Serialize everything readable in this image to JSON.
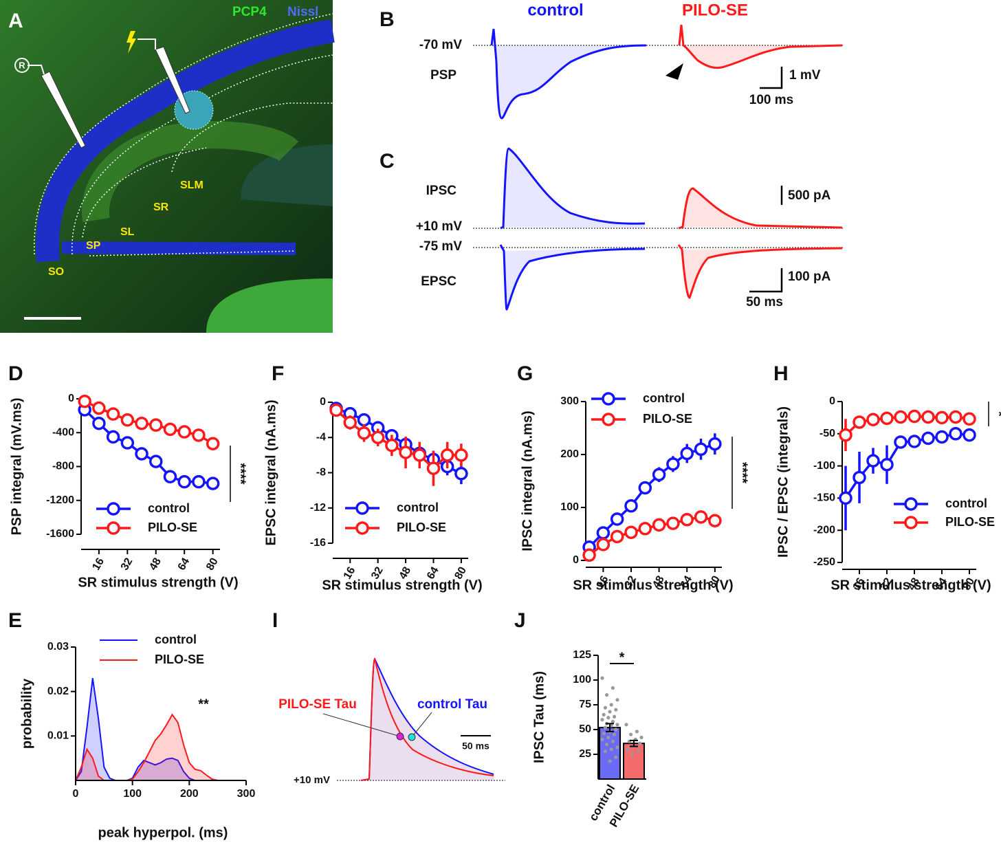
{
  "panel_a": {
    "label": "A",
    "stain_1": "PCP4",
    "stain_2": "Nissl",
    "recording_marker": "R",
    "layers": [
      "SLM",
      "SR",
      "SL",
      "SP",
      "SO"
    ]
  },
  "panel_b": {
    "label": "B",
    "condition_1": "control",
    "condition_2": "PILO-SE",
    "holding": "-70 mV",
    "trace": "PSP",
    "scale_y": "1 mV",
    "scale_x": "100 ms"
  },
  "panel_c": {
    "label": "C",
    "trace_1": "IPSC",
    "holding_1": "+10 mV",
    "holding_2": "-75 mV",
    "trace_2": "EPSC",
    "scale_y1": "500 pA",
    "scale_y2": "100 pA",
    "scale_x": "50 ms"
  },
  "panel_i": {
    "label": "I",
    "tau_1": "PILO-SE Tau",
    "tau_2": "control Tau",
    "scale_x": "50 ms",
    "holding": "+10 mV"
  },
  "chart_data": [
    {
      "type": "line",
      "panel_label": "D",
      "ylabel": "PSP integral (mV.ms)",
      "xlabel": "SR stimulus strength (V)",
      "x": [
        8,
        16,
        24,
        32,
        40,
        48,
        56,
        64,
        72,
        80
      ],
      "xlim": [
        6,
        84
      ],
      "xticks": [
        16,
        32,
        48,
        64,
        80
      ],
      "ylim": [
        -1600,
        0
      ],
      "yticks": [
        0,
        -400,
        -800,
        -1200,
        -1600
      ],
      "significance": "****",
      "legend": "lower left",
      "series": [
        {
          "name": "control",
          "color": "#1414ff",
          "values": [
            -130,
            -290,
            -450,
            -520,
            -650,
            -740,
            -920,
            -980,
            -980,
            -1000
          ],
          "errors": [
            30,
            40,
            45,
            50,
            55,
            60,
            70,
            70,
            70,
            70
          ]
        },
        {
          "name": "PILO-SE",
          "color": "#ff1a1a",
          "values": [
            -30,
            -110,
            -180,
            -250,
            -290,
            -310,
            -360,
            -390,
            -430,
            -530
          ],
          "errors": [
            20,
            25,
            30,
            30,
            35,
            35,
            40,
            40,
            40,
            50
          ]
        }
      ]
    },
    {
      "type": "line",
      "panel_label": "F",
      "ylabel": "EPSC integral (nA.ms)",
      "xlabel": "SR stimulus strength (V)",
      "x": [
        8,
        16,
        24,
        32,
        40,
        48,
        56,
        64,
        72,
        80
      ],
      "xlim": [
        6,
        84
      ],
      "xticks": [
        16,
        32,
        48,
        64,
        80
      ],
      "ylim": [
        -16,
        0
      ],
      "yticks": [
        0,
        -4,
        -8,
        -12,
        -16
      ],
      "legend": "lower left",
      "series": [
        {
          "name": "control",
          "color": "#1414ff",
          "values": [
            -0.7,
            -1.3,
            -2.0,
            -2.9,
            -3.8,
            -4.8,
            -5.8,
            -6.5,
            -7.3,
            -8.1
          ],
          "errors": [
            0.3,
            0.4,
            0.5,
            0.6,
            0.7,
            0.8,
            0.9,
            1.0,
            1.0,
            1.2
          ]
        },
        {
          "name": "PILO-SE",
          "color": "#ff1a1a",
          "values": [
            -0.9,
            -2.3,
            -3.5,
            -4.0,
            -4.9,
            -5.7,
            -6.0,
            -7.5,
            -6.0,
            -6.0
          ],
          "errors": [
            0.4,
            0.8,
            1.0,
            1.0,
            1.2,
            1.8,
            1.5,
            2.0,
            1.5,
            1.3
          ]
        }
      ]
    },
    {
      "type": "line",
      "panel_label": "G",
      "ylabel": "IPSC integral (nA.ms)",
      "xlabel": "SR stimulus strength (V)",
      "x": [
        8,
        16,
        24,
        32,
        40,
        48,
        56,
        64,
        72,
        80
      ],
      "xlim": [
        6,
        84
      ],
      "xticks": [
        16,
        32,
        48,
        64,
        80
      ],
      "ylim": [
        0,
        300
      ],
      "yticks": [
        0,
        100,
        200,
        300
      ],
      "significance": "****",
      "legend": "upper left",
      "series": [
        {
          "name": "control",
          "color": "#1414ff",
          "values": [
            25,
            52,
            78,
            103,
            137,
            162,
            182,
            202,
            210,
            220
          ],
          "errors": [
            5,
            7,
            8,
            10,
            12,
            14,
            15,
            18,
            20,
            20
          ]
        },
        {
          "name": "PILO-SE",
          "color": "#ff1a1a",
          "values": [
            10,
            30,
            45,
            53,
            60,
            67,
            70,
            77,
            82,
            75
          ],
          "errors": [
            4,
            5,
            6,
            7,
            8,
            8,
            9,
            9,
            10,
            9
          ]
        }
      ]
    },
    {
      "type": "line",
      "panel_label": "H",
      "ylabel": "IPSC / EPSC (integrals)",
      "xlabel": "SR stimulus strength (V)",
      "x": [
        8,
        16,
        24,
        32,
        40,
        48,
        56,
        64,
        72,
        80
      ],
      "xlim": [
        6,
        84
      ],
      "xticks": [
        16,
        32,
        48,
        64,
        80
      ],
      "ylim": [
        -250,
        0
      ],
      "yticks": [
        0,
        -50,
        -100,
        -150,
        -200,
        -250
      ],
      "significance": "*",
      "legend": "lower right",
      "series": [
        {
          "name": "control",
          "color": "#1414ff",
          "values": [
            -150,
            -118,
            -92,
            -98,
            -63,
            -62,
            -57,
            -55,
            -50,
            -52
          ],
          "errors": [
            50,
            40,
            20,
            30,
            8,
            8,
            8,
            8,
            8,
            8
          ]
        },
        {
          "name": "PILO-SE",
          "color": "#ff1a1a",
          "values": [
            -52,
            -32,
            -28,
            -26,
            -24,
            -23,
            -24,
            -25,
            -24,
            -27
          ],
          "errors": [
            25,
            8,
            6,
            5,
            5,
            5,
            5,
            5,
            5,
            5
          ]
        }
      ]
    },
    {
      "type": "area",
      "panel_label": "E",
      "ylabel": "probability",
      "xlabel": "peak hyperpol. (ms)",
      "x": [
        0,
        10,
        20,
        30,
        40,
        50,
        60,
        70,
        80,
        90,
        100,
        110,
        120,
        130,
        140,
        150,
        160,
        170,
        180,
        190,
        200,
        210,
        220,
        230,
        240,
        250,
        260,
        270,
        280,
        290,
        300
      ],
      "xlim": [
        0,
        300
      ],
      "xticks": [
        0,
        100,
        200,
        300
      ],
      "ylim": [
        0,
        0.03
      ],
      "yticks": [
        0.01,
        0.02,
        0.03
      ],
      "significance": "**",
      "legend": "upper right",
      "series": [
        {
          "name": "control",
          "color": "#1414ff",
          "values": [
            0,
            0.002,
            0.012,
            0.023,
            0.014,
            0.003,
            0.0005,
            0,
            0,
            0,
            0.0005,
            0.003,
            0.0045,
            0.004,
            0.0035,
            0.004,
            0.0048,
            0.005,
            0.0045,
            0.002,
            0.0005,
            0,
            0,
            0,
            0,
            0,
            0,
            0,
            0,
            0,
            0
          ]
        },
        {
          "name": "PILO-SE",
          "color": "#ff1a1a",
          "values": [
            0,
            0.003,
            0.007,
            0.005,
            0.001,
            0,
            0,
            0,
            0,
            0,
            0.0003,
            0.002,
            0.004,
            0.0065,
            0.009,
            0.0105,
            0.0125,
            0.0148,
            0.013,
            0.008,
            0.004,
            0.0025,
            0.0022,
            0.0012,
            0.0003,
            0,
            0,
            0,
            0,
            0,
            0
          ]
        }
      ]
    },
    {
      "type": "bar",
      "panel_label": "J",
      "ylabel": "IPSC Tau (ms)",
      "categories": [
        "control",
        "PILO-SE"
      ],
      "values": [
        52,
        36
      ],
      "errors": [
        4,
        3
      ],
      "colors": [
        "#6b6bf5",
        "#f56b6b"
      ],
      "points": [
        [
          102,
          92,
          85,
          80,
          75,
          72,
          70,
          68,
          65,
          63,
          62,
          60,
          58,
          56,
          55,
          54,
          52,
          50,
          48,
          46,
          45,
          42,
          40,
          38,
          35,
          32,
          30,
          28,
          22,
          18
        ],
        [
          55,
          48,
          45,
          42,
          40,
          38,
          36,
          33,
          30,
          28,
          25
        ]
      ],
      "ylim": [
        0,
        125
      ],
      "yticks": [
        25,
        50,
        75,
        100,
        125
      ],
      "significance": "*"
    }
  ]
}
